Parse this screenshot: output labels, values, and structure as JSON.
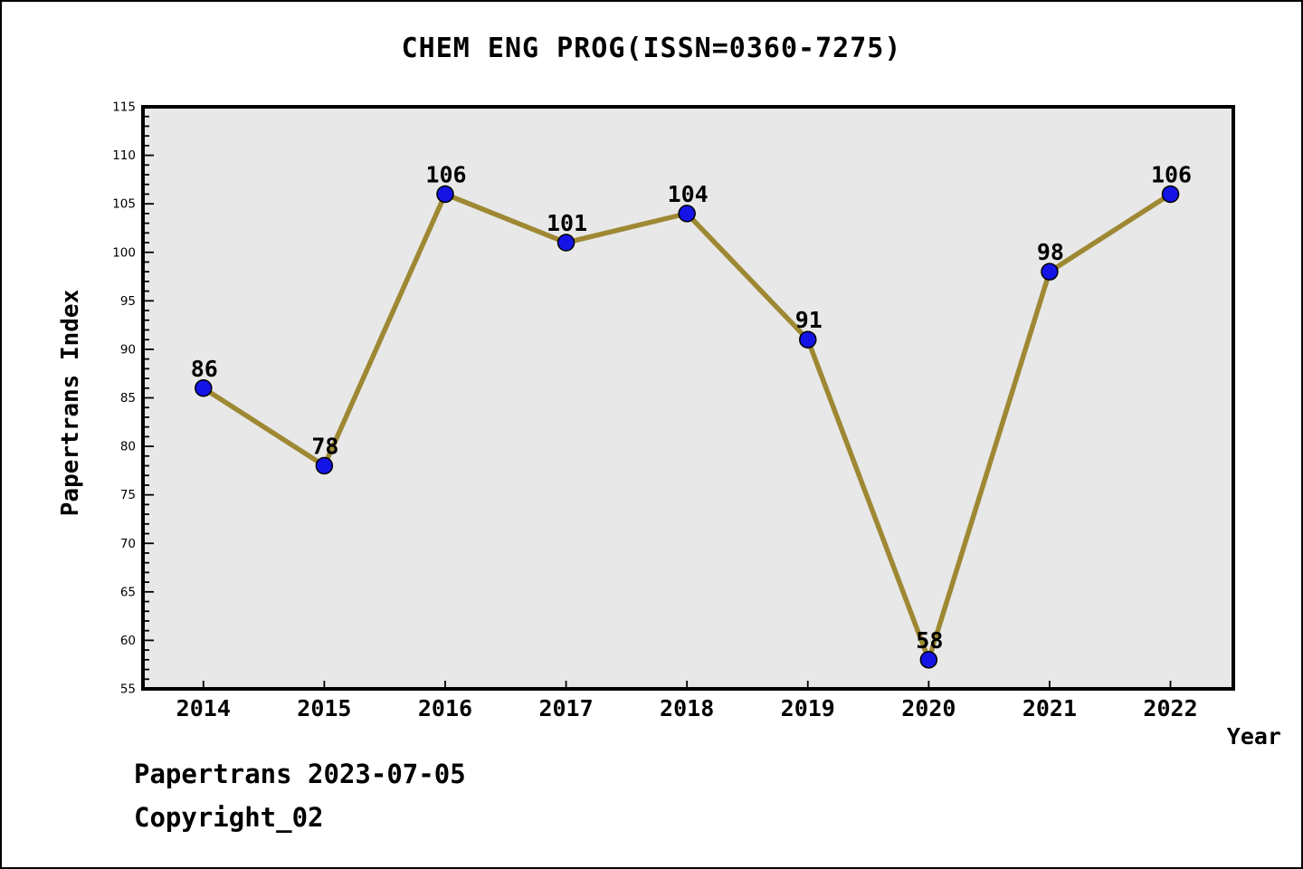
{
  "title": "CHEM ENG PROG(ISSN=0360-7275)",
  "footer": {
    "line1": "Papertrans 2023-07-05",
    "line2": "Copyright_02"
  },
  "chart_data": {
    "type": "line",
    "title": "CHEM ENG PROG(ISSN=0360-7275)",
    "xlabel": "Year",
    "ylabel": "Papertrans Index",
    "x": [
      2014,
      2015,
      2016,
      2017,
      2018,
      2019,
      2020,
      2021,
      2022
    ],
    "values": [
      86,
      78,
      106,
      101,
      104,
      91,
      58,
      98,
      106
    ],
    "point_labels": [
      "86",
      "78",
      "106",
      "101",
      "104",
      "91",
      "58",
      "98",
      "106"
    ],
    "ylim": [
      55,
      115
    ],
    "xlim": [
      2013.5,
      2022.52
    ],
    "y_major_step": 5,
    "y_minor_step": 1,
    "y_tick_labels": [
      "55",
      "60",
      "65",
      "70",
      "75",
      "80",
      "85",
      "90",
      "95",
      "100",
      "105",
      "110",
      "115"
    ],
    "grid": false,
    "legend": null,
    "colors": {
      "line": "#9e8833",
      "marker_fill": "#1414e6",
      "marker_edge": "#000000",
      "plot_background": "#e8e8e8",
      "figure_background": "#ffffff",
      "axis": "#000000",
      "text": "#000000"
    }
  }
}
